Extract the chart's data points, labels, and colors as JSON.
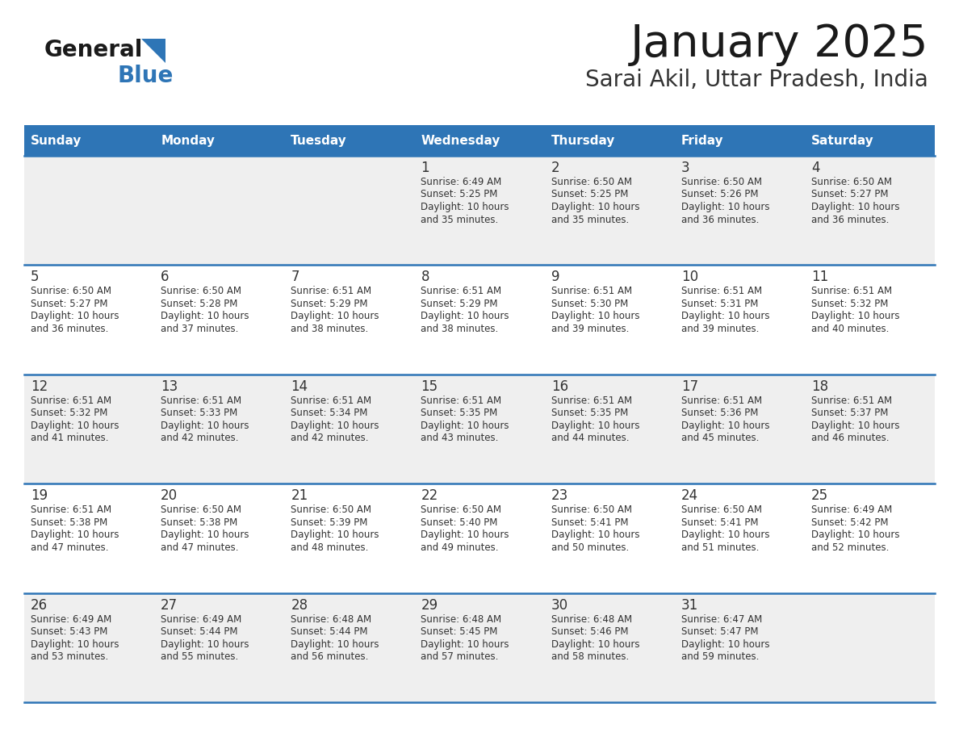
{
  "title": "January 2025",
  "subtitle": "Sarai Akil, Uttar Pradesh, India",
  "days_of_week": [
    "Sunday",
    "Monday",
    "Tuesday",
    "Wednesday",
    "Thursday",
    "Friday",
    "Saturday"
  ],
  "header_bg": "#2E75B6",
  "header_text": "#FFFFFF",
  "row0_bg": "#EFEFEF",
  "row1_bg": "#FFFFFF",
  "row2_bg": "#EFEFEF",
  "row3_bg": "#FFFFFF",
  "row4_bg": "#EFEFEF",
  "divider_color": "#2E75B6",
  "cell_text_color": "#333333",
  "title_color": "#1a1a1a",
  "subtitle_color": "#333333",
  "logo_general_color": "#1a1a1a",
  "logo_blue_color": "#2E75B6",
  "logo_triangle_color": "#2E75B6",
  "calendar": [
    [
      {
        "day": "",
        "info": ""
      },
      {
        "day": "",
        "info": ""
      },
      {
        "day": "",
        "info": ""
      },
      {
        "day": "1",
        "info": "Sunrise: 6:49 AM\nSunset: 5:25 PM\nDaylight: 10 hours\nand 35 minutes."
      },
      {
        "day": "2",
        "info": "Sunrise: 6:50 AM\nSunset: 5:25 PM\nDaylight: 10 hours\nand 35 minutes."
      },
      {
        "day": "3",
        "info": "Sunrise: 6:50 AM\nSunset: 5:26 PM\nDaylight: 10 hours\nand 36 minutes."
      },
      {
        "day": "4",
        "info": "Sunrise: 6:50 AM\nSunset: 5:27 PM\nDaylight: 10 hours\nand 36 minutes."
      }
    ],
    [
      {
        "day": "5",
        "info": "Sunrise: 6:50 AM\nSunset: 5:27 PM\nDaylight: 10 hours\nand 36 minutes."
      },
      {
        "day": "6",
        "info": "Sunrise: 6:50 AM\nSunset: 5:28 PM\nDaylight: 10 hours\nand 37 minutes."
      },
      {
        "day": "7",
        "info": "Sunrise: 6:51 AM\nSunset: 5:29 PM\nDaylight: 10 hours\nand 38 minutes."
      },
      {
        "day": "8",
        "info": "Sunrise: 6:51 AM\nSunset: 5:29 PM\nDaylight: 10 hours\nand 38 minutes."
      },
      {
        "day": "9",
        "info": "Sunrise: 6:51 AM\nSunset: 5:30 PM\nDaylight: 10 hours\nand 39 minutes."
      },
      {
        "day": "10",
        "info": "Sunrise: 6:51 AM\nSunset: 5:31 PM\nDaylight: 10 hours\nand 39 minutes."
      },
      {
        "day": "11",
        "info": "Sunrise: 6:51 AM\nSunset: 5:32 PM\nDaylight: 10 hours\nand 40 minutes."
      }
    ],
    [
      {
        "day": "12",
        "info": "Sunrise: 6:51 AM\nSunset: 5:32 PM\nDaylight: 10 hours\nand 41 minutes."
      },
      {
        "day": "13",
        "info": "Sunrise: 6:51 AM\nSunset: 5:33 PM\nDaylight: 10 hours\nand 42 minutes."
      },
      {
        "day": "14",
        "info": "Sunrise: 6:51 AM\nSunset: 5:34 PM\nDaylight: 10 hours\nand 42 minutes."
      },
      {
        "day": "15",
        "info": "Sunrise: 6:51 AM\nSunset: 5:35 PM\nDaylight: 10 hours\nand 43 minutes."
      },
      {
        "day": "16",
        "info": "Sunrise: 6:51 AM\nSunset: 5:35 PM\nDaylight: 10 hours\nand 44 minutes."
      },
      {
        "day": "17",
        "info": "Sunrise: 6:51 AM\nSunset: 5:36 PM\nDaylight: 10 hours\nand 45 minutes."
      },
      {
        "day": "18",
        "info": "Sunrise: 6:51 AM\nSunset: 5:37 PM\nDaylight: 10 hours\nand 46 minutes."
      }
    ],
    [
      {
        "day": "19",
        "info": "Sunrise: 6:51 AM\nSunset: 5:38 PM\nDaylight: 10 hours\nand 47 minutes."
      },
      {
        "day": "20",
        "info": "Sunrise: 6:50 AM\nSunset: 5:38 PM\nDaylight: 10 hours\nand 47 minutes."
      },
      {
        "day": "21",
        "info": "Sunrise: 6:50 AM\nSunset: 5:39 PM\nDaylight: 10 hours\nand 48 minutes."
      },
      {
        "day": "22",
        "info": "Sunrise: 6:50 AM\nSunset: 5:40 PM\nDaylight: 10 hours\nand 49 minutes."
      },
      {
        "day": "23",
        "info": "Sunrise: 6:50 AM\nSunset: 5:41 PM\nDaylight: 10 hours\nand 50 minutes."
      },
      {
        "day": "24",
        "info": "Sunrise: 6:50 AM\nSunset: 5:41 PM\nDaylight: 10 hours\nand 51 minutes."
      },
      {
        "day": "25",
        "info": "Sunrise: 6:49 AM\nSunset: 5:42 PM\nDaylight: 10 hours\nand 52 minutes."
      }
    ],
    [
      {
        "day": "26",
        "info": "Sunrise: 6:49 AM\nSunset: 5:43 PM\nDaylight: 10 hours\nand 53 minutes."
      },
      {
        "day": "27",
        "info": "Sunrise: 6:49 AM\nSunset: 5:44 PM\nDaylight: 10 hours\nand 55 minutes."
      },
      {
        "day": "28",
        "info": "Sunrise: 6:48 AM\nSunset: 5:44 PM\nDaylight: 10 hours\nand 56 minutes."
      },
      {
        "day": "29",
        "info": "Sunrise: 6:48 AM\nSunset: 5:45 PM\nDaylight: 10 hours\nand 57 minutes."
      },
      {
        "day": "30",
        "info": "Sunrise: 6:48 AM\nSunset: 5:46 PM\nDaylight: 10 hours\nand 58 minutes."
      },
      {
        "day": "31",
        "info": "Sunrise: 6:47 AM\nSunset: 5:47 PM\nDaylight: 10 hours\nand 59 minutes."
      },
      {
        "day": "",
        "info": ""
      }
    ]
  ]
}
